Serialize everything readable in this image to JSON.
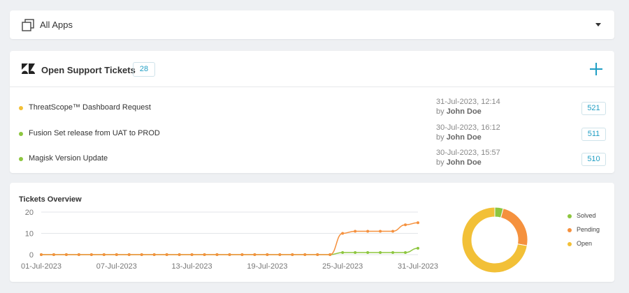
{
  "app_selector": {
    "label": "All Apps",
    "icon": "apps-stack-icon"
  },
  "tickets": {
    "title": "Open Support Tickets",
    "count": "28",
    "brand_color": "#1f9ec4",
    "items": [
      {
        "subject": "ThreatScope™ Dashboard Request",
        "date": "31-Jul-2023, 12:14",
        "by_prefix": "by",
        "author": "John Doe",
        "id": "521",
        "status_color": "#f2c037"
      },
      {
        "subject": "Fusion Set release from UAT to PROD",
        "date": "30-Jul-2023, 16:12",
        "by_prefix": "by",
        "author": "John Doe",
        "id": "511",
        "status_color": "#8dc63f"
      },
      {
        "subject": "Magisk Version Update",
        "date": "30-Jul-2023, 15:57",
        "by_prefix": "by",
        "author": "John Doe",
        "id": "510",
        "status_color": "#8dc63f"
      }
    ]
  },
  "overview": {
    "title": "Tickets Overview",
    "legend": [
      {
        "label": "Solved",
        "color": "#8dc63f"
      },
      {
        "label": "Pending",
        "color": "#f5913e"
      },
      {
        "label": "Open",
        "color": "#f2c037"
      }
    ]
  },
  "chart_data": [
    {
      "type": "line",
      "title": "Tickets Overview",
      "x": [
        "01-Jul-2023",
        "02-Jul-2023",
        "03-Jul-2023",
        "04-Jul-2023",
        "05-Jul-2023",
        "06-Jul-2023",
        "07-Jul-2023",
        "08-Jul-2023",
        "09-Jul-2023",
        "10-Jul-2023",
        "11-Jul-2023",
        "12-Jul-2023",
        "13-Jul-2023",
        "14-Jul-2023",
        "15-Jul-2023",
        "16-Jul-2023",
        "17-Jul-2023",
        "18-Jul-2023",
        "19-Jul-2023",
        "20-Jul-2023",
        "21-Jul-2023",
        "22-Jul-2023",
        "23-Jul-2023",
        "24-Jul-2023",
        "25-Jul-2023",
        "26-Jul-2023",
        "27-Jul-2023",
        "28-Jul-2023",
        "29-Jul-2023",
        "30-Jul-2023",
        "31-Jul-2023"
      ],
      "x_tick_labels": [
        "01-Jul-2023",
        "07-Jul-2023",
        "13-Jul-2023",
        "19-Jul-2023",
        "25-Jul-2023",
        "31-Jul-2023"
      ],
      "series": [
        {
          "name": "Pending",
          "color": "#f5913e",
          "values": [
            0,
            0,
            0,
            0,
            0,
            0,
            0,
            0,
            0,
            0,
            0,
            0,
            0,
            0,
            0,
            0,
            0,
            0,
            0,
            0,
            0,
            0,
            0,
            0,
            10,
            11,
            11,
            11,
            11,
            14,
            15
          ]
        },
        {
          "name": "Solved",
          "color": "#8dc63f",
          "values": [
            0,
            0,
            0,
            0,
            0,
            0,
            0,
            0,
            0,
            0,
            0,
            0,
            0,
            0,
            0,
            0,
            0,
            0,
            0,
            0,
            0,
            0,
            0,
            0,
            1,
            1,
            1,
            1,
            1,
            1,
            3
          ]
        }
      ],
      "ylim": [
        0,
        20
      ],
      "y_ticks": [
        0,
        10,
        20
      ],
      "grid": true
    },
    {
      "type": "pie",
      "style": "donut",
      "labels": [
        "Solved",
        "Pending",
        "Open"
      ],
      "values": [
        1.5,
        8.5,
        26
      ],
      "colors": [
        "#8dc63f",
        "#f5913e",
        "#f2c037"
      ]
    }
  ]
}
